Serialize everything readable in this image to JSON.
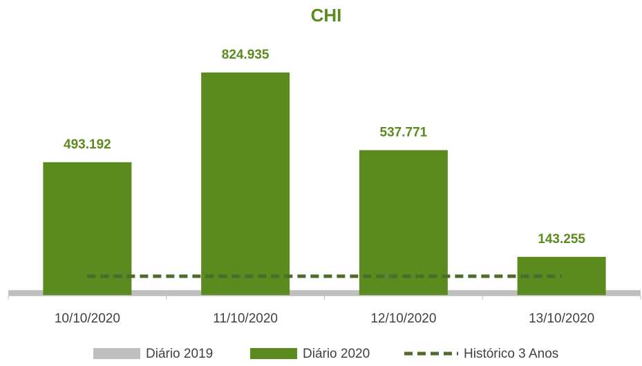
{
  "chart_data": {
    "type": "bar",
    "title": "CHI",
    "categories": [
      "10/10/2020",
      "11/10/2020",
      "12/10/2020",
      "13/10/2020"
    ],
    "series": [
      {
        "name": "Diário 2019",
        "color": "#bfbfbf",
        "values": [
          20000,
          20000,
          20000,
          20000
        ]
      },
      {
        "name": "Diário 2020",
        "color": "#5b8a1e",
        "values": [
          493192,
          824935,
          537771,
          143255
        ],
        "value_labels": [
          "493.192",
          "824.935",
          "537.771",
          "143.255"
        ]
      },
      {
        "name": "Histórico 3 Anos",
        "type": "line",
        "color": "#4e6b2e",
        "dashed": true,
        "values": [
          71500,
          71500,
          71500,
          71500
        ]
      }
    ],
    "ylim": [
      0,
      900000
    ],
    "legend": "bottom"
  }
}
